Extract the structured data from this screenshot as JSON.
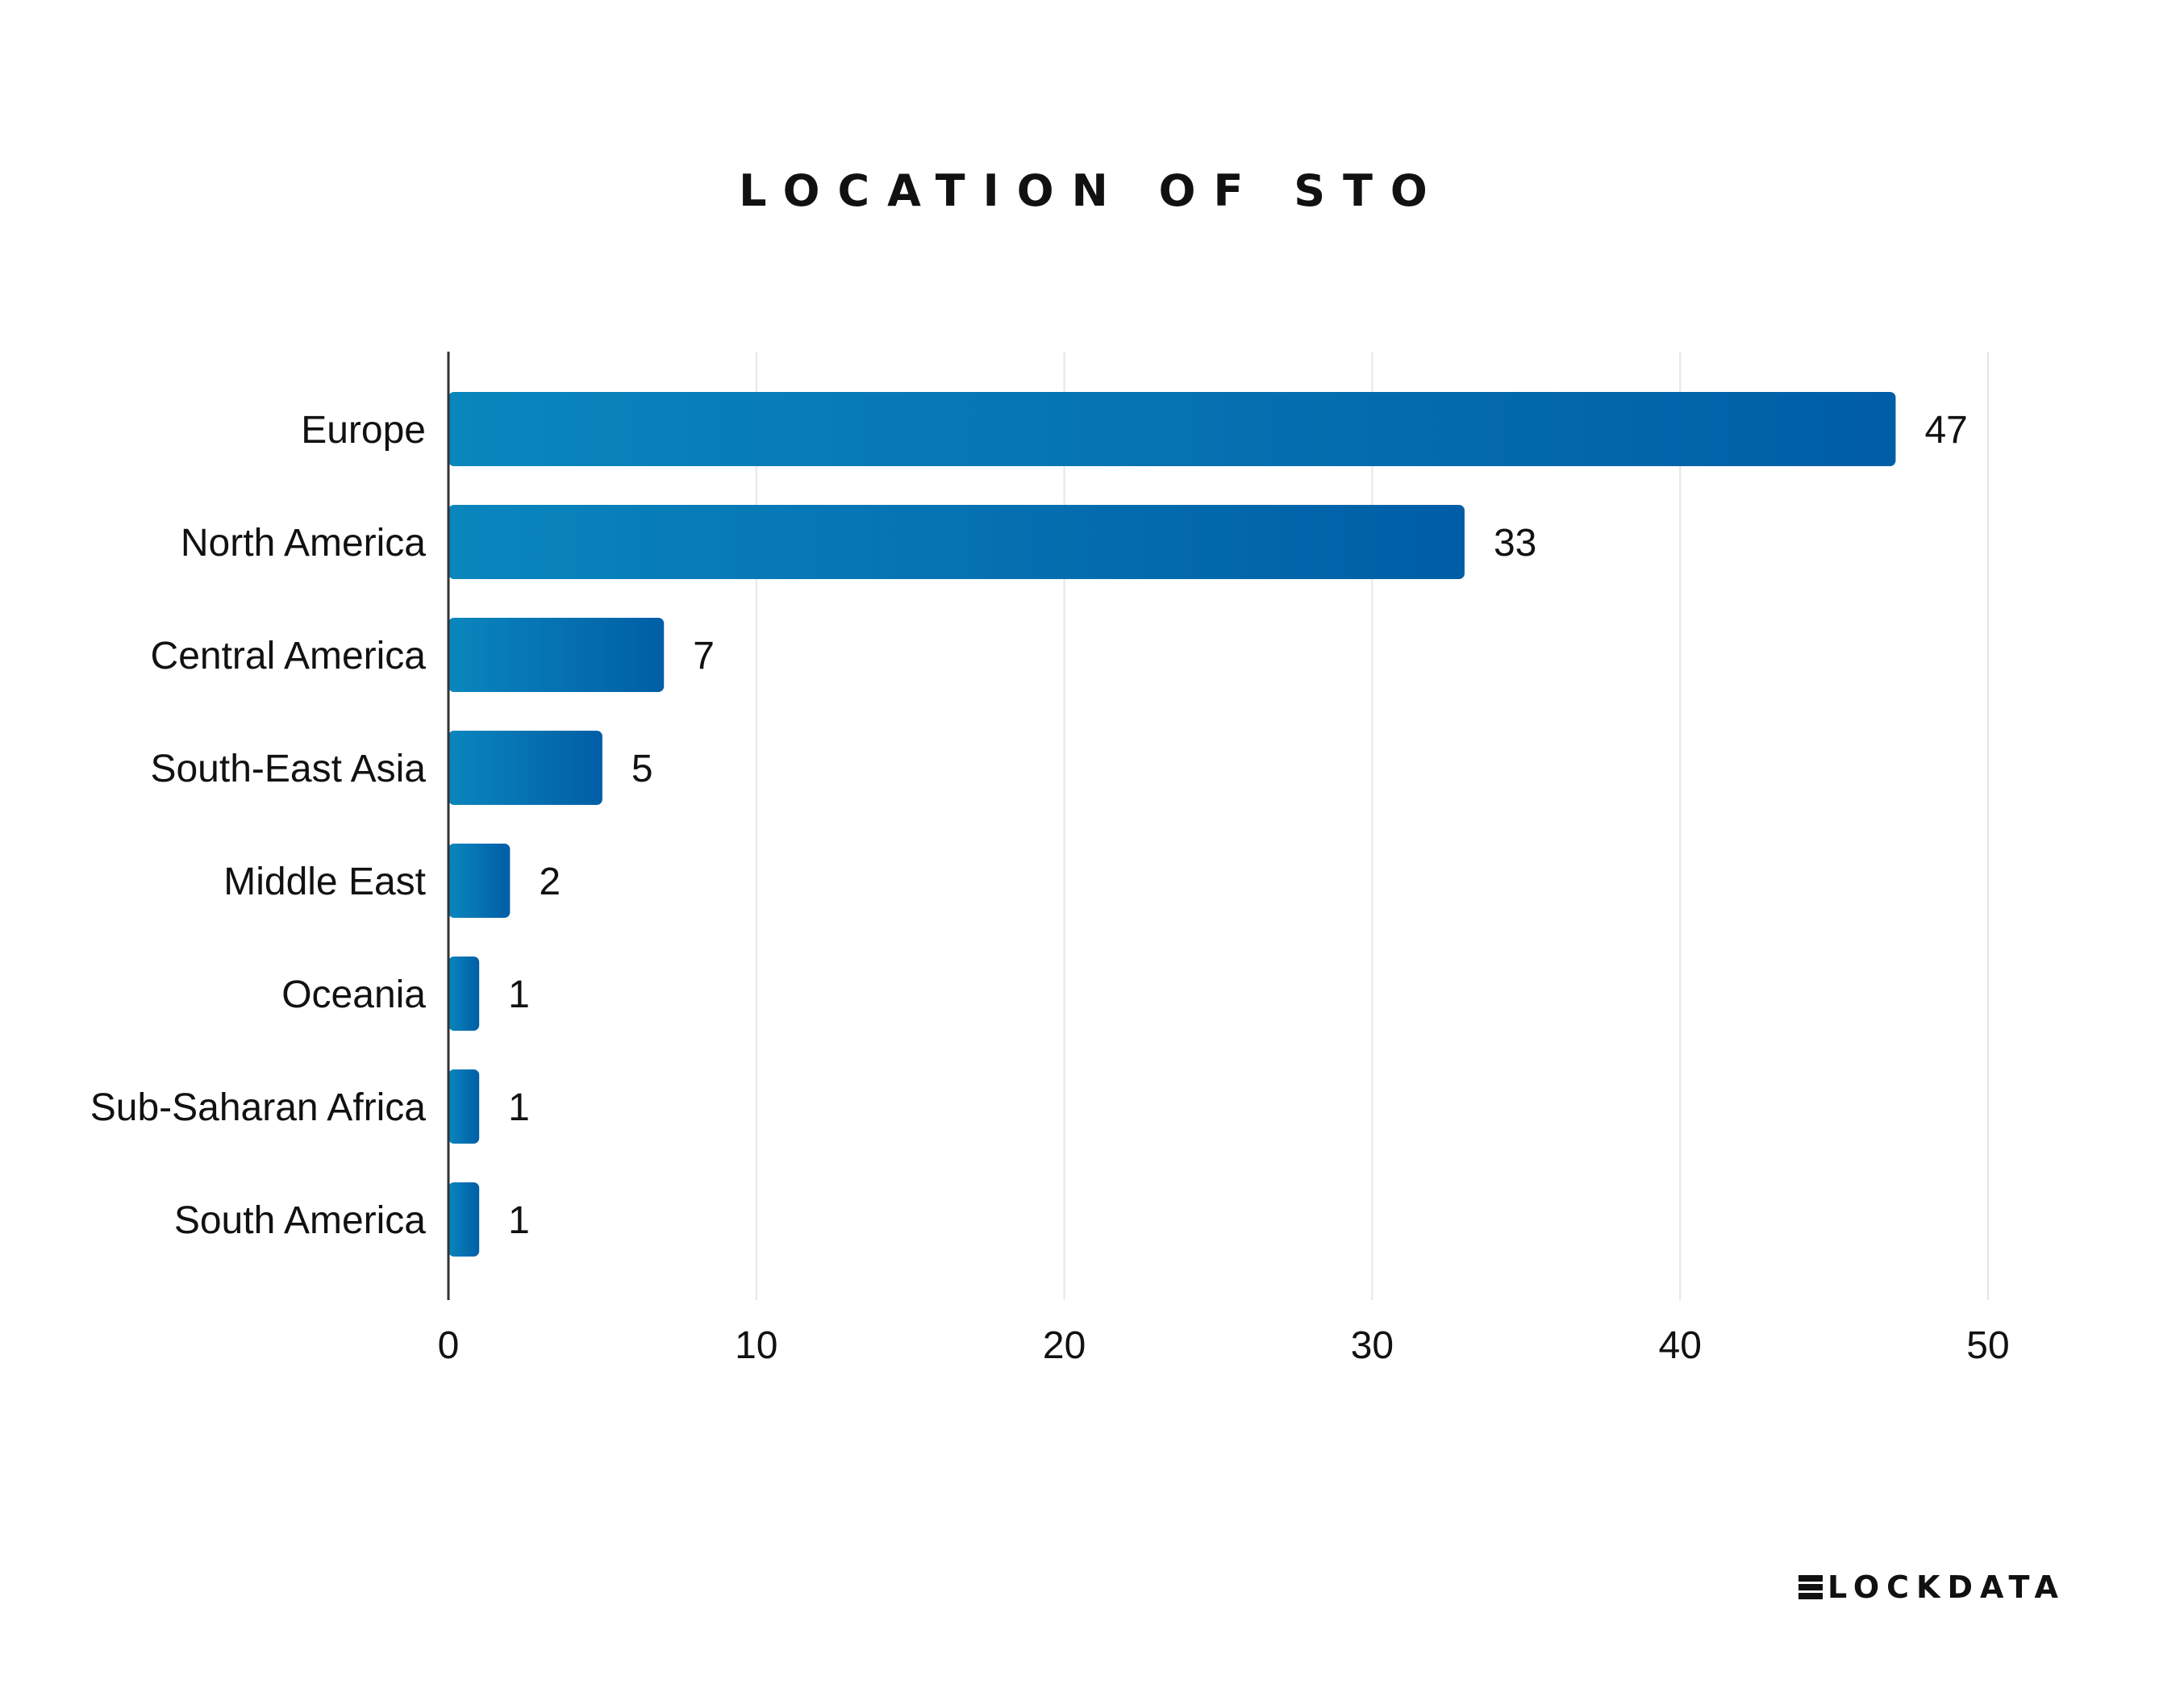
{
  "title": "LOCATION OF STO",
  "brand": {
    "text": "LOCKDATA",
    "icon": "blockdata-logo-mark"
  },
  "colors": {
    "bar_start": "#0a86bd",
    "bar_end": "#005ea6",
    "axis": "#333333",
    "grid": "#e6e6e6"
  },
  "chart_data": {
    "type": "bar",
    "orientation": "horizontal",
    "title": "LOCATION OF STO",
    "categories": [
      "Europe",
      "North America",
      "Central America",
      "South-East Asia",
      "Middle East",
      "Oceania",
      "Sub-Saharan Africa",
      "South America"
    ],
    "values": [
      47,
      33,
      7,
      5,
      2,
      1,
      1,
      1
    ],
    "xlabel": "",
    "ylabel": "",
    "xlim": [
      0,
      50
    ],
    "xticks": [
      0,
      10,
      20,
      30,
      40,
      50
    ],
    "grid": true,
    "data_labels": true
  }
}
